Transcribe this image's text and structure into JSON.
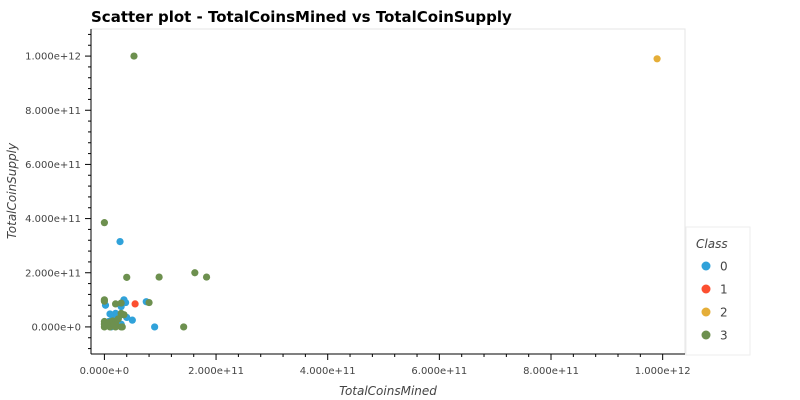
{
  "chart_data": {
    "type": "scatter",
    "title": "Scatter plot - TotalCoinsMined vs TotalCoinSupply",
    "xlabel": "TotalCoinsMined",
    "ylabel": "TotalCoinSupply",
    "xlim": [
      -24000000000.0,
      1040000000000.0
    ],
    "ylim": [
      -100000000000.0,
      1100000000000.0
    ],
    "x_ticks": [
      0,
      200000000000.0,
      400000000000.0,
      600000000000.0,
      800000000000.0,
      1000000000000.0
    ],
    "x_tick_labels": [
      "0.000e+0",
      "2.000e+11",
      "4.000e+11",
      "6.000e+11",
      "8.000e+11",
      "1.000e+12"
    ],
    "y_ticks": [
      0,
      200000000000.0,
      400000000000.0,
      600000000000.0,
      800000000000.0,
      1000000000000.0
    ],
    "y_tick_labels": [
      "0.000e+0",
      "2.000e+11",
      "4.000e+11",
      "6.000e+11",
      "8.000e+11",
      "1.000e+12"
    ],
    "grid": false,
    "legend": {
      "title": "Class",
      "placement": "right",
      "entries": [
        "0",
        "1",
        "2",
        "3"
      ]
    },
    "series": [
      {
        "name": "0",
        "color": "#30a2da",
        "points": [
          [
            28000000000.0,
            315000000000.0
          ],
          [
            35000000000.0,
            100000000000.0
          ],
          [
            38000000000.0,
            90000000000.0
          ],
          [
            75000000000.0,
            93000000000.0
          ],
          [
            90000000000.0,
            0
          ],
          [
            50000000000.0,
            25000000000.0
          ],
          [
            30000000000.0,
            75000000000.0
          ],
          [
            20000000000.0,
            50000000000.0
          ],
          [
            10000000000.0,
            48000000000.0
          ],
          [
            30000000000.0,
            45000000000.0
          ],
          [
            15000000000.0,
            30000000000.0
          ],
          [
            8000000000.0,
            20000000000.0
          ],
          [
            25000000000.0,
            15000000000.0
          ],
          [
            2000000000.0,
            80000000000.0
          ],
          [
            40000000000.0,
            35000000000.0
          ],
          [
            18000000000.0,
            25000000000.0
          ],
          [
            30000000000.0,
            10000000000.0
          ],
          [
            12000000000.0,
            0
          ]
        ]
      },
      {
        "name": "1",
        "color": "#fc4f30",
        "points": [
          [
            55000000000.0,
            85000000000.0
          ]
        ]
      },
      {
        "name": "2",
        "color": "#e5ae38",
        "points": [
          [
            990000000000.0,
            990000000000.0
          ]
        ]
      },
      {
        "name": "3",
        "color": "#6d904f",
        "points": [
          [
            53000000000.0,
            1000000000000.0
          ],
          [
            0,
            385000000000.0
          ],
          [
            40000000000.0,
            183000000000.0
          ],
          [
            98000000000.0,
            184000000000.0
          ],
          [
            162000000000.0,
            200000000000.0
          ],
          [
            183000000000.0,
            184000000000.0
          ],
          [
            0,
            100000000000.0
          ],
          [
            0,
            95000000000.0
          ],
          [
            20000000000.0,
            85000000000.0
          ],
          [
            30000000000.0,
            88000000000.0
          ],
          [
            80000000000.0,
            90000000000.0
          ],
          [
            142000000000.0,
            0
          ],
          [
            0,
            20000000000.0
          ],
          [
            0,
            10000000000.0
          ],
          [
            5000000000.0,
            12000000000.0
          ],
          [
            10000000000.0,
            18000000000.0
          ],
          [
            15000000000.0,
            22000000000.0
          ],
          [
            20000000000.0,
            15000000000.0
          ],
          [
            25000000000.0,
            30000000000.0
          ],
          [
            30000000000.0,
            50000000000.0
          ],
          [
            35000000000.0,
            45000000000.0
          ],
          [
            10000000000.0,
            0
          ],
          [
            20000000000.0,
            0
          ],
          [
            30000000000.0,
            0
          ],
          [
            0,
            0
          ],
          [
            5000000000.0,
            5000000000.0
          ],
          [
            18000000000.0,
            8000000000.0
          ],
          [
            32000000000.0,
            0
          ]
        ]
      }
    ]
  }
}
